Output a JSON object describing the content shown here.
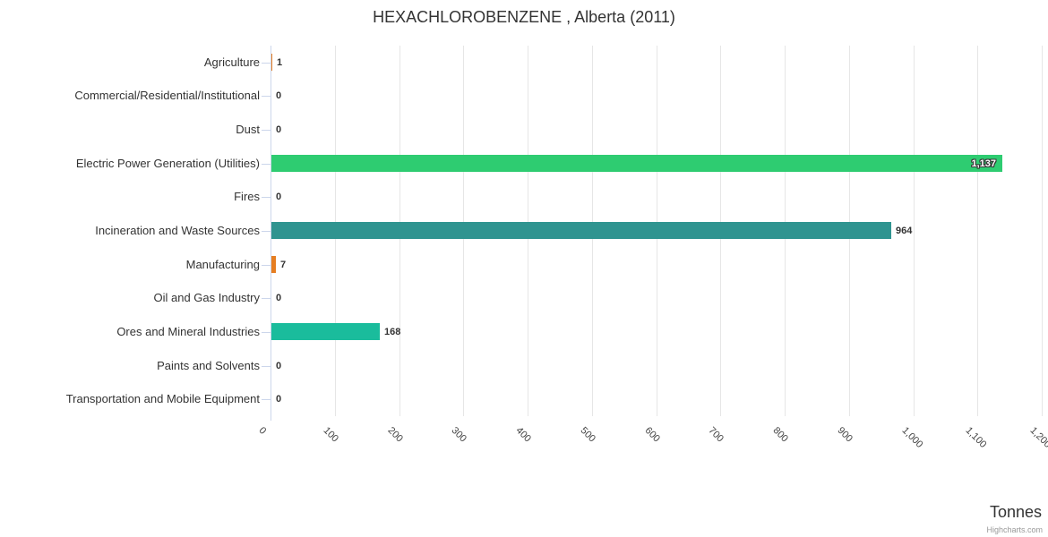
{
  "chart_data": {
    "type": "bar",
    "title": "HEXACHLOROBENZENE , Alberta (2011)",
    "categories": [
      "Agriculture",
      "Commercial/Residential/Institutional",
      "Dust",
      "Electric Power Generation (Utilities)",
      "Fires",
      "Incineration and Waste Sources",
      "Manufacturing",
      "Oil and Gas Industry",
      "Ores and Mineral Industries",
      "Paints and Solvents",
      "Transportation and Mobile Equipment"
    ],
    "values": [
      1,
      0,
      0,
      1137,
      0,
      964,
      7,
      0,
      168,
      0,
      0
    ],
    "value_labels": [
      "1",
      "0",
      "0",
      "1,137",
      "0",
      "964",
      "7",
      "0",
      "168",
      "0",
      "0"
    ],
    "point_colors": [
      "#e67e22",
      null,
      null,
      "#2ecc71",
      null,
      "#2f9490",
      "#e67e22",
      null,
      "#1abc9c",
      null,
      null
    ],
    "label_inside": [
      false,
      false,
      false,
      true,
      false,
      false,
      false,
      false,
      false,
      false,
      false
    ],
    "xlabel": "Tonnes",
    "value_axis": {
      "min": 0,
      "max": 1200,
      "tick_interval": 100,
      "tick_labels": [
        "0",
        "100",
        "200",
        "300",
        "400",
        "500",
        "600",
        "700",
        "800",
        "900",
        "1,000",
        "1,100",
        "1,200"
      ]
    },
    "grid": true,
    "legend": "none",
    "credit": "Highcharts.com",
    "style_colors": {
      "axis_line": "#ccd6eb",
      "grid_line": "#e6e6e6",
      "category_label": "#333333",
      "tick_label": "#444444",
      "title": "#333333",
      "credit": "#999999"
    }
  }
}
